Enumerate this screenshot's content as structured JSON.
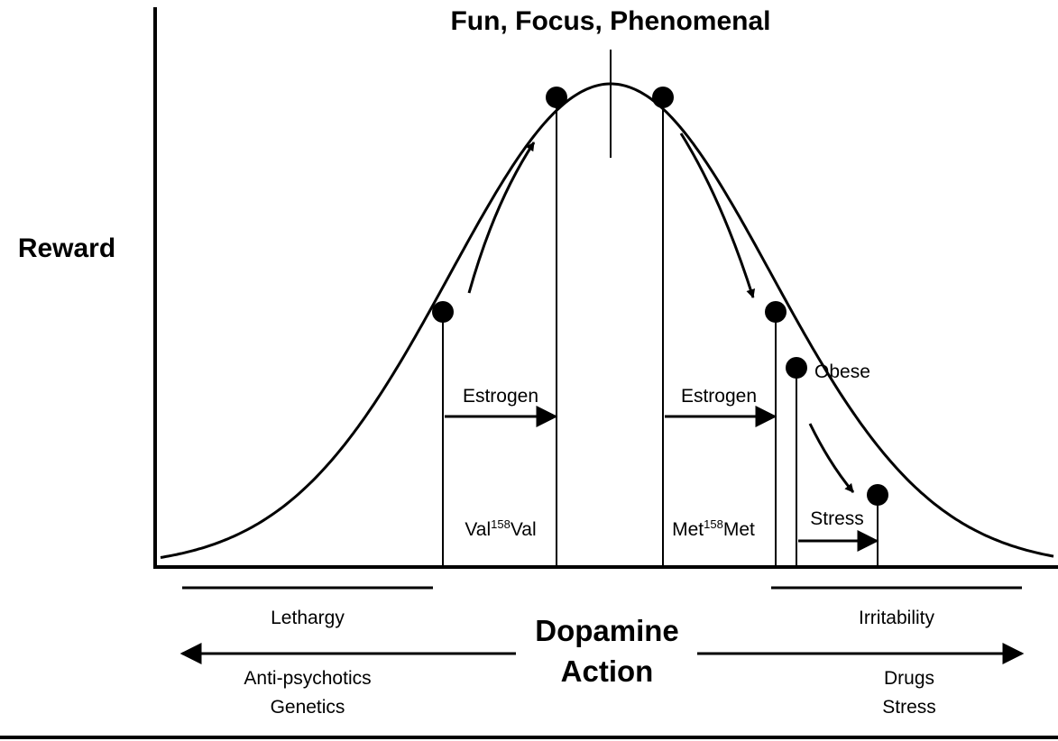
{
  "title": "Fun, Focus, Phenomenal",
  "y_axis_label": "Reward",
  "x_axis_label": [
    "Dopamine",
    "Action"
  ],
  "arrow_labels": {
    "left_estrogen": "Estrogen",
    "right_estrogen": "Estrogen",
    "stress": "Stress"
  },
  "genotypes": {
    "val": {
      "prefix": "Val",
      "sup": "158",
      "suffix": "Val"
    },
    "met": {
      "prefix": "Met",
      "sup": "158",
      "suffix": "Met"
    }
  },
  "point_labels": {
    "obese": "Obese"
  },
  "low_end": {
    "state": "Lethargy",
    "causes": [
      "Anti-psychotics",
      "Genetics"
    ]
  },
  "high_end": {
    "state": "Irritability",
    "causes": [
      "Drugs",
      "Stress"
    ]
  },
  "colors": {
    "ink": "#000000",
    "background": "#ffffff"
  }
}
